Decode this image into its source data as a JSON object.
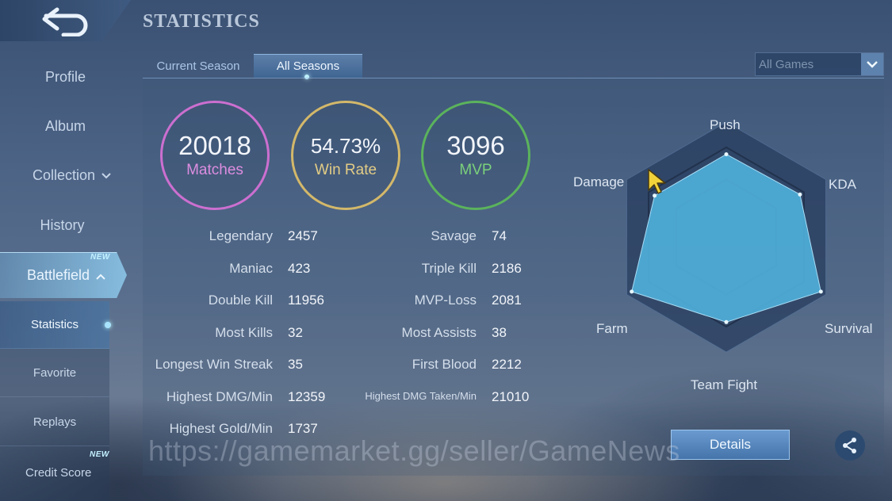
{
  "header": {
    "title": "STATISTICS"
  },
  "sidebar": {
    "items": [
      {
        "label": "Profile"
      },
      {
        "label": "Album"
      },
      {
        "label": "Collection"
      },
      {
        "label": "History"
      },
      {
        "label": "Battlefield",
        "badge": "NEW"
      }
    ],
    "sub_items": [
      {
        "label": "Statistics"
      },
      {
        "label": "Favorite"
      },
      {
        "label": "Replays"
      },
      {
        "label": "Credit Score",
        "badge": "NEW"
      }
    ]
  },
  "tabs": {
    "current_season": "Current Season",
    "all_seasons": "All Seasons"
  },
  "filter": {
    "selected": "All Games"
  },
  "summary": {
    "matches_value": "20018",
    "matches_label": "Matches",
    "winrate_value": "54.73%",
    "winrate_label": "Win Rate",
    "mvp_value": "3096",
    "mvp_label": "MVP"
  },
  "stats_left": [
    {
      "label": "Legendary",
      "value": "2457"
    },
    {
      "label": "Maniac",
      "value": "423"
    },
    {
      "label": "Double Kill",
      "value": "11956"
    },
    {
      "label": "Most Kills",
      "value": "32"
    },
    {
      "label": "Longest Win Streak",
      "value": "35"
    },
    {
      "label": "Highest DMG/Min",
      "value": "12359"
    },
    {
      "label": "Highest Gold/Min",
      "value": "1737"
    }
  ],
  "stats_right": [
    {
      "label": "Savage",
      "value": "74"
    },
    {
      "label": "Triple Kill",
      "value": "2186"
    },
    {
      "label": "MVP-Loss",
      "value": "2081"
    },
    {
      "label": "Most Assists",
      "value": "38"
    },
    {
      "label": "First Blood",
      "value": "2212"
    },
    {
      "label": "Highest DMG Taken/Min",
      "value": "21010"
    }
  ],
  "radar": {
    "axes": [
      "Push",
      "KDA",
      "Survival",
      "Team Fight",
      "Farm",
      "Damage"
    ],
    "levels": [
      0.72,
      0.74,
      0.95,
      0.74,
      0.95,
      0.72
    ],
    "fill_color": "#4fb0dc"
  },
  "details_label": "Details",
  "watermark": "https://gamemarket.gg/seller/GameNews",
  "icons": {
    "back": "back-arrow-icon",
    "dropdown": "chevron-down-icon",
    "share": "share-icon",
    "cursor": "cursor-icon"
  }
}
